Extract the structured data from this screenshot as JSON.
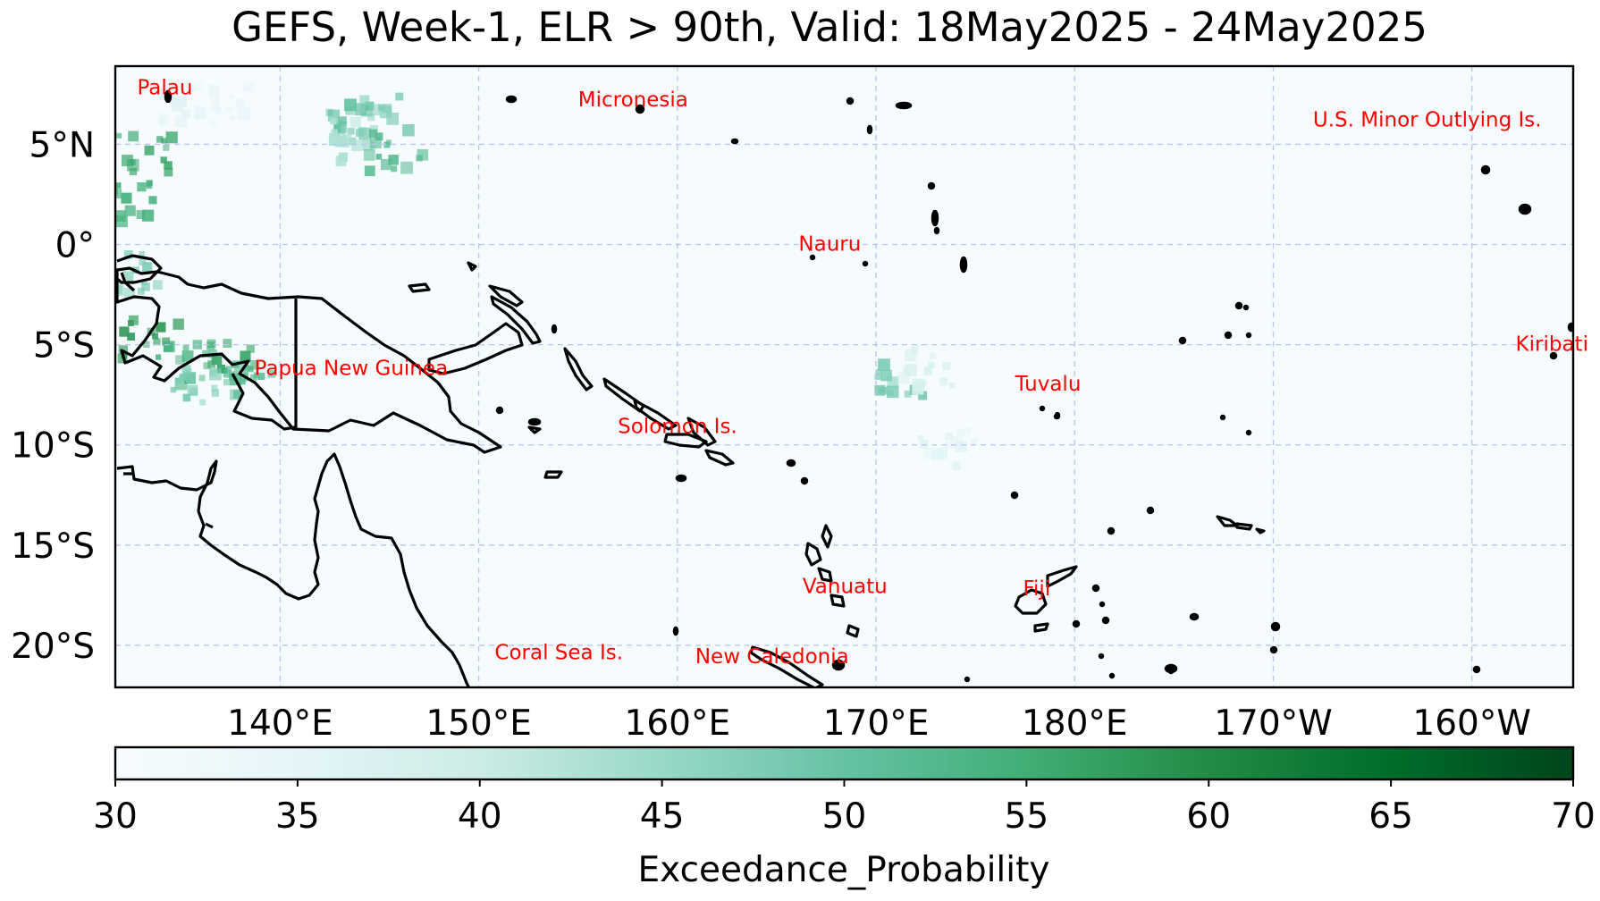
{
  "title": "GEFS, Week-1, ELR > 90th, Valid: 18May2025 - 24May2025",
  "map": {
    "lon_range": [
      131.7,
      -154.9
    ],
    "lat_range": [
      -22.1,
      8.9
    ],
    "gridlines": true,
    "lon_ticks": [
      {
        "lon": 140,
        "label": "140°E"
      },
      {
        "lon": 150,
        "label": "150°E"
      },
      {
        "lon": 160,
        "label": "160°E"
      },
      {
        "lon": 170,
        "label": "170°E"
      },
      {
        "lon": 180,
        "label": "180°E"
      },
      {
        "lon": 190,
        "label": "170°W"
      },
      {
        "lon": 200,
        "label": "160°W"
      }
    ],
    "lat_ticks": [
      {
        "lat": 5,
        "label": "5°N"
      },
      {
        "lat": 0,
        "label": "0°"
      },
      {
        "lat": -5,
        "label": "5°S"
      },
      {
        "lat": -10,
        "label": "10°S"
      },
      {
        "lat": -15,
        "label": "15°S"
      },
      {
        "lat": -20,
        "label": "20°S"
      }
    ],
    "country_labels": [
      {
        "text": "Palau",
        "lon": 132.8,
        "lat": 7.5
      },
      {
        "text": "Micronesia",
        "lon": 155.0,
        "lat": 6.9
      },
      {
        "text": "U.S. Minor Outlying Is.",
        "lon": 192.0,
        "lat": 5.9
      },
      {
        "text": "Nauru",
        "lon": 166.1,
        "lat": -0.3
      },
      {
        "text": "Kiribati",
        "lon": 202.2,
        "lat": -5.3
      },
      {
        "text": "Papua New Guinea",
        "lon": 138.7,
        "lat": -6.5
      },
      {
        "text": "Tuvalu",
        "lon": 177.0,
        "lat": -7.3
      },
      {
        "text": "Solomon Is.",
        "lon": 157.0,
        "lat": -9.4
      },
      {
        "text": "Vanuatu",
        "lon": 166.3,
        "lat": -17.4
      },
      {
        "text": "Fiji",
        "lon": 177.4,
        "lat": -17.5
      },
      {
        "text": "Coral Sea Is.",
        "lon": 150.8,
        "lat": -20.7
      },
      {
        "text": "New Caledonia",
        "lon": 160.9,
        "lat": -20.9
      }
    ],
    "label_color": "#ff0000",
    "coast_color": "#000000",
    "background_color": "#f6fcfd",
    "probability_patches": [
      {
        "lon": 135.0,
        "lat": 7.0,
        "value": 36
      },
      {
        "lon": 137.0,
        "lat": 7.2,
        "value": 34
      },
      {
        "lon": 143.5,
        "lat": 6.3,
        "value": 50
      },
      {
        "lon": 145.0,
        "lat": 6.6,
        "value": 47
      },
      {
        "lon": 143.8,
        "lat": 5.4,
        "value": 43
      },
      {
        "lon": 145.5,
        "lat": 4.9,
        "value": 52
      },
      {
        "lon": 133.0,
        "lat": 4.8,
        "value": 56
      },
      {
        "lon": 132.4,
        "lat": 2.4,
        "value": 54
      },
      {
        "lon": 132.4,
        "lat": -1.2,
        "value": 48
      },
      {
        "lon": 133.2,
        "lat": -4.5,
        "value": 58
      },
      {
        "lon": 135.0,
        "lat": -5.7,
        "value": 54
      },
      {
        "lon": 137.2,
        "lat": -5.5,
        "value": 56
      },
      {
        "lon": 138.5,
        "lat": -6.3,
        "value": 52
      },
      {
        "lon": 135.9,
        "lat": -6.8,
        "value": 48
      },
      {
        "lon": 171.0,
        "lat": -6.4,
        "value": 48
      },
      {
        "lon": 172.5,
        "lat": -6.0,
        "value": 38
      },
      {
        "lon": 173.5,
        "lat": -10.0,
        "value": 36
      }
    ]
  },
  "colorbar": {
    "label": "Exceedance_Probability",
    "min": 30,
    "max": 70,
    "ticks": [
      "30",
      "35",
      "40",
      "45",
      "50",
      "55",
      "60",
      "65",
      "70"
    ],
    "colors": [
      "#f7fcfd",
      "#e5f5f9",
      "#ccece6",
      "#99d8c9",
      "#66c2a4",
      "#41ae76",
      "#238b45",
      "#006d2c",
      "#00441b"
    ]
  }
}
